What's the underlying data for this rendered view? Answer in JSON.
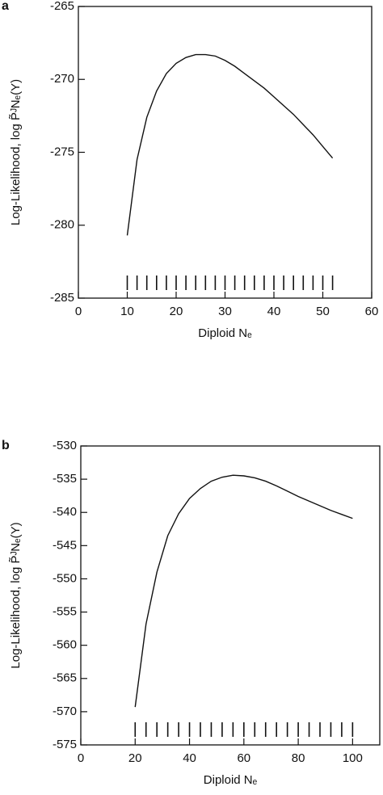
{
  "chart_data": [
    {
      "type": "line",
      "label": "a",
      "x_label": "Diploid Nₑ",
      "y_label": "Log-Likelihood,  log P̃ᴶNₑ(Y)",
      "xlim": [
        0,
        60
      ],
      "xticks": [
        0,
        10,
        20,
        30,
        40,
        50,
        60
      ],
      "ylim": [
        -285,
        -265
      ],
      "yticks": [
        -285,
        -280,
        -275,
        -270,
        -265
      ],
      "x": [
        10,
        12,
        14,
        16,
        18,
        20,
        22,
        24,
        26,
        28,
        30,
        32,
        34,
        36,
        38,
        40,
        42,
        44,
        46,
        48,
        50,
        52
      ],
      "values": [
        -280.7,
        -275.5,
        -272.6,
        -270.8,
        -269.6,
        -268.9,
        -268.5,
        -268.3,
        -268.3,
        -268.4,
        -268.7,
        -269.1,
        -269.6,
        -270.1,
        -270.6,
        -271.2,
        -271.8,
        -272.4,
        -273.1,
        -273.8,
        -274.6,
        -275.4
      ],
      "color": "#111111"
    },
    {
      "type": "line",
      "label": "b",
      "x_label": "Diploid Nₑ",
      "y_label": "Log-Likelihood,  log P̃ᴶNₑ(Y)",
      "xlim": [
        0,
        110
      ],
      "xticks": [
        0,
        20,
        40,
        60,
        80,
        100
      ],
      "ylim": [
        -575,
        -530
      ],
      "yticks": [
        -575,
        -570,
        -565,
        -560,
        -555,
        -550,
        -545,
        -540,
        -535,
        -530
      ],
      "x": [
        20,
        24,
        28,
        32,
        36,
        40,
        44,
        48,
        52,
        56,
        60,
        64,
        68,
        72,
        76,
        80,
        84,
        88,
        92,
        96,
        100
      ],
      "values": [
        -569.3,
        -556.8,
        -549,
        -543.5,
        -540.2,
        -537.9,
        -536.4,
        -535.3,
        -534.7,
        -534.4,
        -534.5,
        -534.8,
        -535.3,
        -536,
        -536.8,
        -537.6,
        -538.3,
        -539,
        -539.7,
        -540.3,
        -540.9
      ],
      "color": "#111111"
    }
  ]
}
